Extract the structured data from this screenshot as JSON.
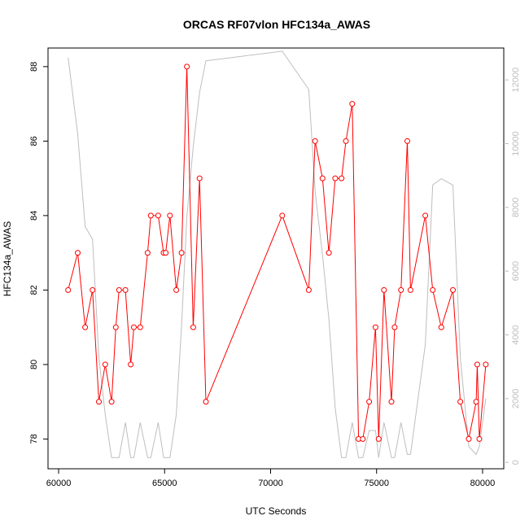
{
  "chart_data": {
    "type": "line",
    "title": "ORCAS RF07vlon HFC134a_AWAS",
    "xlabel": "UTC Seconds",
    "ylabel": "HFC134a_AWAS",
    "xlim": [
      59500,
      81000
    ],
    "ylim": [
      77.2,
      88.5
    ],
    "xticks": [
      60000,
      65000,
      70000,
      75000,
      80000
    ],
    "yticks": [
      78,
      80,
      82,
      84,
      86,
      88
    ],
    "y2lim": [
      -200,
      13000
    ],
    "y2ticks": [
      0,
      2000,
      4000,
      6000,
      8000,
      10000,
      12000
    ],
    "grid": false,
    "legend": "none",
    "series": [
      {
        "axis": "left",
        "color": "#ff0000",
        "marker": "open-circle",
        "x": [
          60450,
          60900,
          61250,
          61600,
          61900,
          62200,
          62500,
          62700,
          62850,
          63150,
          63400,
          63550,
          63850,
          64200,
          64350,
          64700,
          64950,
          65050,
          65250,
          65550,
          65800,
          66050,
          66350,
          66650,
          66950,
          70550,
          71800,
          72100,
          72450,
          72750,
          73050,
          73350,
          73550,
          73850,
          74150,
          74350,
          74650,
          74950,
          75100,
          75350,
          75700,
          75850,
          76150,
          76450,
          76600,
          77300,
          77650,
          78050,
          78600,
          78950,
          79350,
          79700,
          79750,
          79850,
          80150
        ],
        "y": [
          82,
          83,
          81,
          82,
          79,
          80,
          79,
          81,
          82,
          82,
          80,
          81,
          81,
          83,
          84,
          84,
          83,
          83,
          84,
          82,
          83,
          88,
          81,
          85,
          79,
          84,
          82,
          86,
          85,
          83,
          85,
          85,
          86,
          87,
          78,
          78,
          79,
          81,
          78,
          82,
          79,
          81,
          82,
          86,
          82,
          84,
          82,
          81,
          82,
          79,
          78,
          79,
          80,
          78,
          80
        ]
      },
      {
        "axis": "right",
        "color": "#bebebe",
        "marker": "none",
        "x": [
          60450,
          60900,
          61250,
          61600,
          61900,
          62200,
          62500,
          62850,
          63150,
          63400,
          63550,
          63850,
          64200,
          64350,
          64700,
          64950,
          65250,
          65550,
          65800,
          66050,
          66350,
          66650,
          66950,
          70550,
          71800,
          72100,
          72450,
          72750,
          73050,
          73350,
          73550,
          73850,
          74150,
          74350,
          74650,
          74950,
          75100,
          75350,
          75700,
          75850,
          76150,
          76450,
          76600,
          77300,
          77650,
          78050,
          78600,
          78950,
          79350,
          79700,
          79850,
          80150
        ],
        "y": [
          12700,
          10300,
          7400,
          7000,
          3300,
          1500,
          150,
          150,
          1250,
          150,
          150,
          1250,
          150,
          150,
          1250,
          150,
          150,
          1500,
          4300,
          7700,
          9900,
          11600,
          12600,
          12900,
          11700,
          8500,
          6500,
          4500,
          1700,
          150,
          150,
          1250,
          150,
          150,
          1000,
          1000,
          150,
          1250,
          150,
          150,
          1250,
          250,
          250,
          3700,
          8700,
          8900,
          8700,
          3300,
          500,
          250,
          500,
          2000
        ]
      }
    ]
  }
}
